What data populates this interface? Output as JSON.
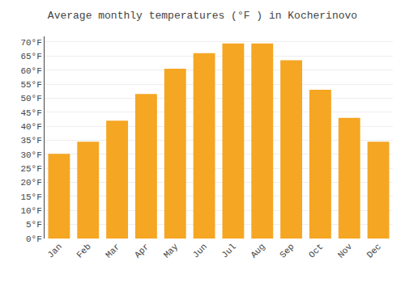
{
  "chart_data": {
    "type": "bar",
    "title": "Average monthly temperatures (°F ) in Kocherinovo",
    "categories": [
      "Jan",
      "Feb",
      "Mar",
      "Apr",
      "May",
      "Jun",
      "Jul",
      "Aug",
      "Sep",
      "Oct",
      "Nov",
      "Dec"
    ],
    "values": [
      30.2,
      34.5,
      42.0,
      51.5,
      60.5,
      66.0,
      69.5,
      69.5,
      63.5,
      53.0,
      43.0,
      34.5
    ],
    "color": "#F5A623",
    "ylim": [
      0,
      72
    ],
    "yticks": [
      {
        "value": 0,
        "label": "0°F"
      },
      {
        "value": 5,
        "label": "5°F"
      },
      {
        "value": 10,
        "label": "10°F"
      },
      {
        "value": 15,
        "label": "15°F"
      },
      {
        "value": 20,
        "label": "20°F"
      },
      {
        "value": 25,
        "label": "25°F"
      },
      {
        "value": 30,
        "label": "30°F"
      },
      {
        "value": 35,
        "label": "35°F"
      },
      {
        "value": 40,
        "label": "40°F"
      },
      {
        "value": 45,
        "label": "45°F"
      },
      {
        "value": 50,
        "label": "50°F"
      },
      {
        "value": 55,
        "label": "55°F"
      },
      {
        "value": 60,
        "label": "60°F"
      },
      {
        "value": 65,
        "label": "65°F"
      },
      {
        "value": 70,
        "label": "70°F"
      }
    ],
    "grid": true
  }
}
